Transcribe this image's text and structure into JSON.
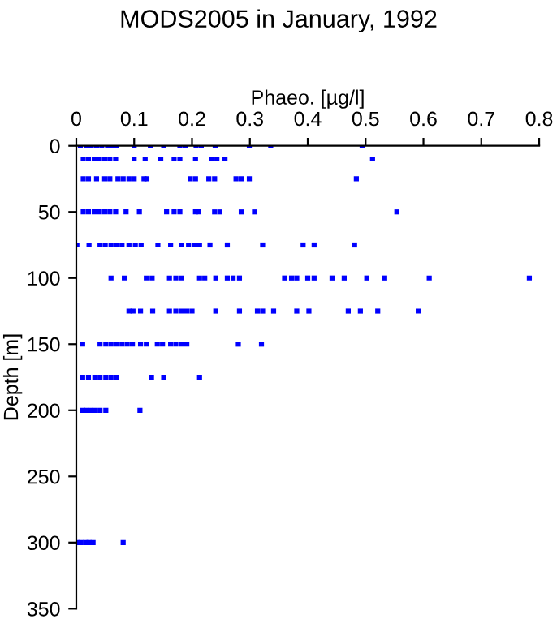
{
  "chart_data": {
    "type": "scatter",
    "title": "MODS2005 in January, 1992",
    "xlabel": "Phaeo. [µg/l]",
    "ylabel": "Depth [m]",
    "xlim": [
      0,
      0.8
    ],
    "xticks": [
      0,
      0.1,
      0.2,
      0.3,
      0.4,
      0.5,
      0.6,
      0.7,
      0.8
    ],
    "ylim": [
      350,
      0
    ],
    "yticks": [
      0,
      50,
      100,
      150,
      200,
      250,
      300,
      350
    ],
    "grid": false,
    "legend": false,
    "marker": "square",
    "series": [
      {
        "color": "#0000ff",
        "x": [
          0.007,
          0.017,
          0.026,
          0.035,
          0.044,
          0.054,
          0.063,
          0.07,
          0.1,
          0.128,
          0.151,
          0.179,
          0.188,
          0.207,
          0.216,
          0.24,
          0.299,
          0.336,
          0.494,
          0.012,
          0.021,
          0.031,
          0.04,
          0.049,
          0.058,
          0.068,
          0.1,
          0.119,
          0.146,
          0.169,
          0.179,
          0.206,
          0.234,
          0.243,
          0.257,
          0.512,
          0.012,
          0.021,
          0.035,
          0.049,
          0.058,
          0.072,
          0.081,
          0.091,
          0.1,
          0.117,
          0.122,
          0.197,
          0.206,
          0.229,
          0.239,
          0.276,
          0.285,
          0.299,
          0.484,
          0.012,
          0.021,
          0.031,
          0.04,
          0.049,
          0.058,
          0.068,
          0.086,
          0.109,
          0.156,
          0.169,
          0.179,
          0.206,
          0.211,
          0.239,
          0.248,
          0.285,
          0.308,
          0.554,
          0.001,
          0.022,
          0.041,
          0.05,
          0.06,
          0.069,
          0.079,
          0.091,
          0.102,
          0.112,
          0.141,
          0.163,
          0.182,
          0.194,
          0.205,
          0.213,
          0.231,
          0.261,
          0.322,
          0.392,
          0.411,
          0.481,
          0.06,
          0.083,
          0.121,
          0.131,
          0.161,
          0.172,
          0.182,
          0.213,
          0.222,
          0.241,
          0.261,
          0.271,
          0.282,
          0.36,
          0.372,
          0.381,
          0.4,
          0.411,
          0.442,
          0.463,
          0.502,
          0.533,
          0.61,
          0.783,
          0.091,
          0.098,
          0.111,
          0.132,
          0.161,
          0.172,
          0.182,
          0.191,
          0.2,
          0.241,
          0.282,
          0.313,
          0.322,
          0.341,
          0.381,
          0.402,
          0.47,
          0.491,
          0.521,
          0.591,
          0.011,
          0.041,
          0.051,
          0.06,
          0.069,
          0.079,
          0.088,
          0.097,
          0.111,
          0.121,
          0.14,
          0.149,
          0.163,
          0.172,
          0.182,
          0.191,
          0.28,
          0.32,
          0.011,
          0.021,
          0.032,
          0.041,
          0.051,
          0.06,
          0.069,
          0.13,
          0.151,
          0.213,
          0.011,
          0.018,
          0.025,
          0.032,
          0.041,
          0.051,
          0.11,
          0.001,
          0.008,
          0.016,
          0.022,
          0.029,
          0.081
        ],
        "values": [
          0,
          0,
          0,
          0,
          0,
          0,
          0,
          0,
          0,
          0,
          0,
          0,
          0,
          0,
          0,
          0,
          0,
          0,
          0,
          10,
          10,
          10,
          10,
          10,
          10,
          10,
          10,
          10,
          10,
          10,
          10,
          10,
          10,
          10,
          10,
          10,
          25,
          25,
          25,
          25,
          25,
          25,
          25,
          25,
          25,
          25,
          25,
          25,
          25,
          25,
          25,
          25,
          25,
          25,
          25,
          50,
          50,
          50,
          50,
          50,
          50,
          50,
          50,
          50,
          50,
          50,
          50,
          50,
          50,
          50,
          50,
          50,
          50,
          50,
          75,
          75,
          75,
          75,
          75,
          75,
          75,
          75,
          75,
          75,
          75,
          75,
          75,
          75,
          75,
          75,
          75,
          75,
          75,
          75,
          75,
          75,
          100,
          100,
          100,
          100,
          100,
          100,
          100,
          100,
          100,
          100,
          100,
          100,
          100,
          100,
          100,
          100,
          100,
          100,
          100,
          100,
          100,
          100,
          100,
          100,
          125,
          125,
          125,
          125,
          125,
          125,
          125,
          125,
          125,
          125,
          125,
          125,
          125,
          125,
          125,
          125,
          125,
          125,
          125,
          125,
          150,
          150,
          150,
          150,
          150,
          150,
          150,
          150,
          150,
          150,
          150,
          150,
          150,
          150,
          150,
          150,
          150,
          150,
          175,
          175,
          175,
          175,
          175,
          175,
          175,
          175,
          175,
          175,
          200,
          200,
          200,
          200,
          200,
          200,
          200,
          300,
          300,
          300,
          300,
          300,
          300
        ]
      }
    ]
  }
}
